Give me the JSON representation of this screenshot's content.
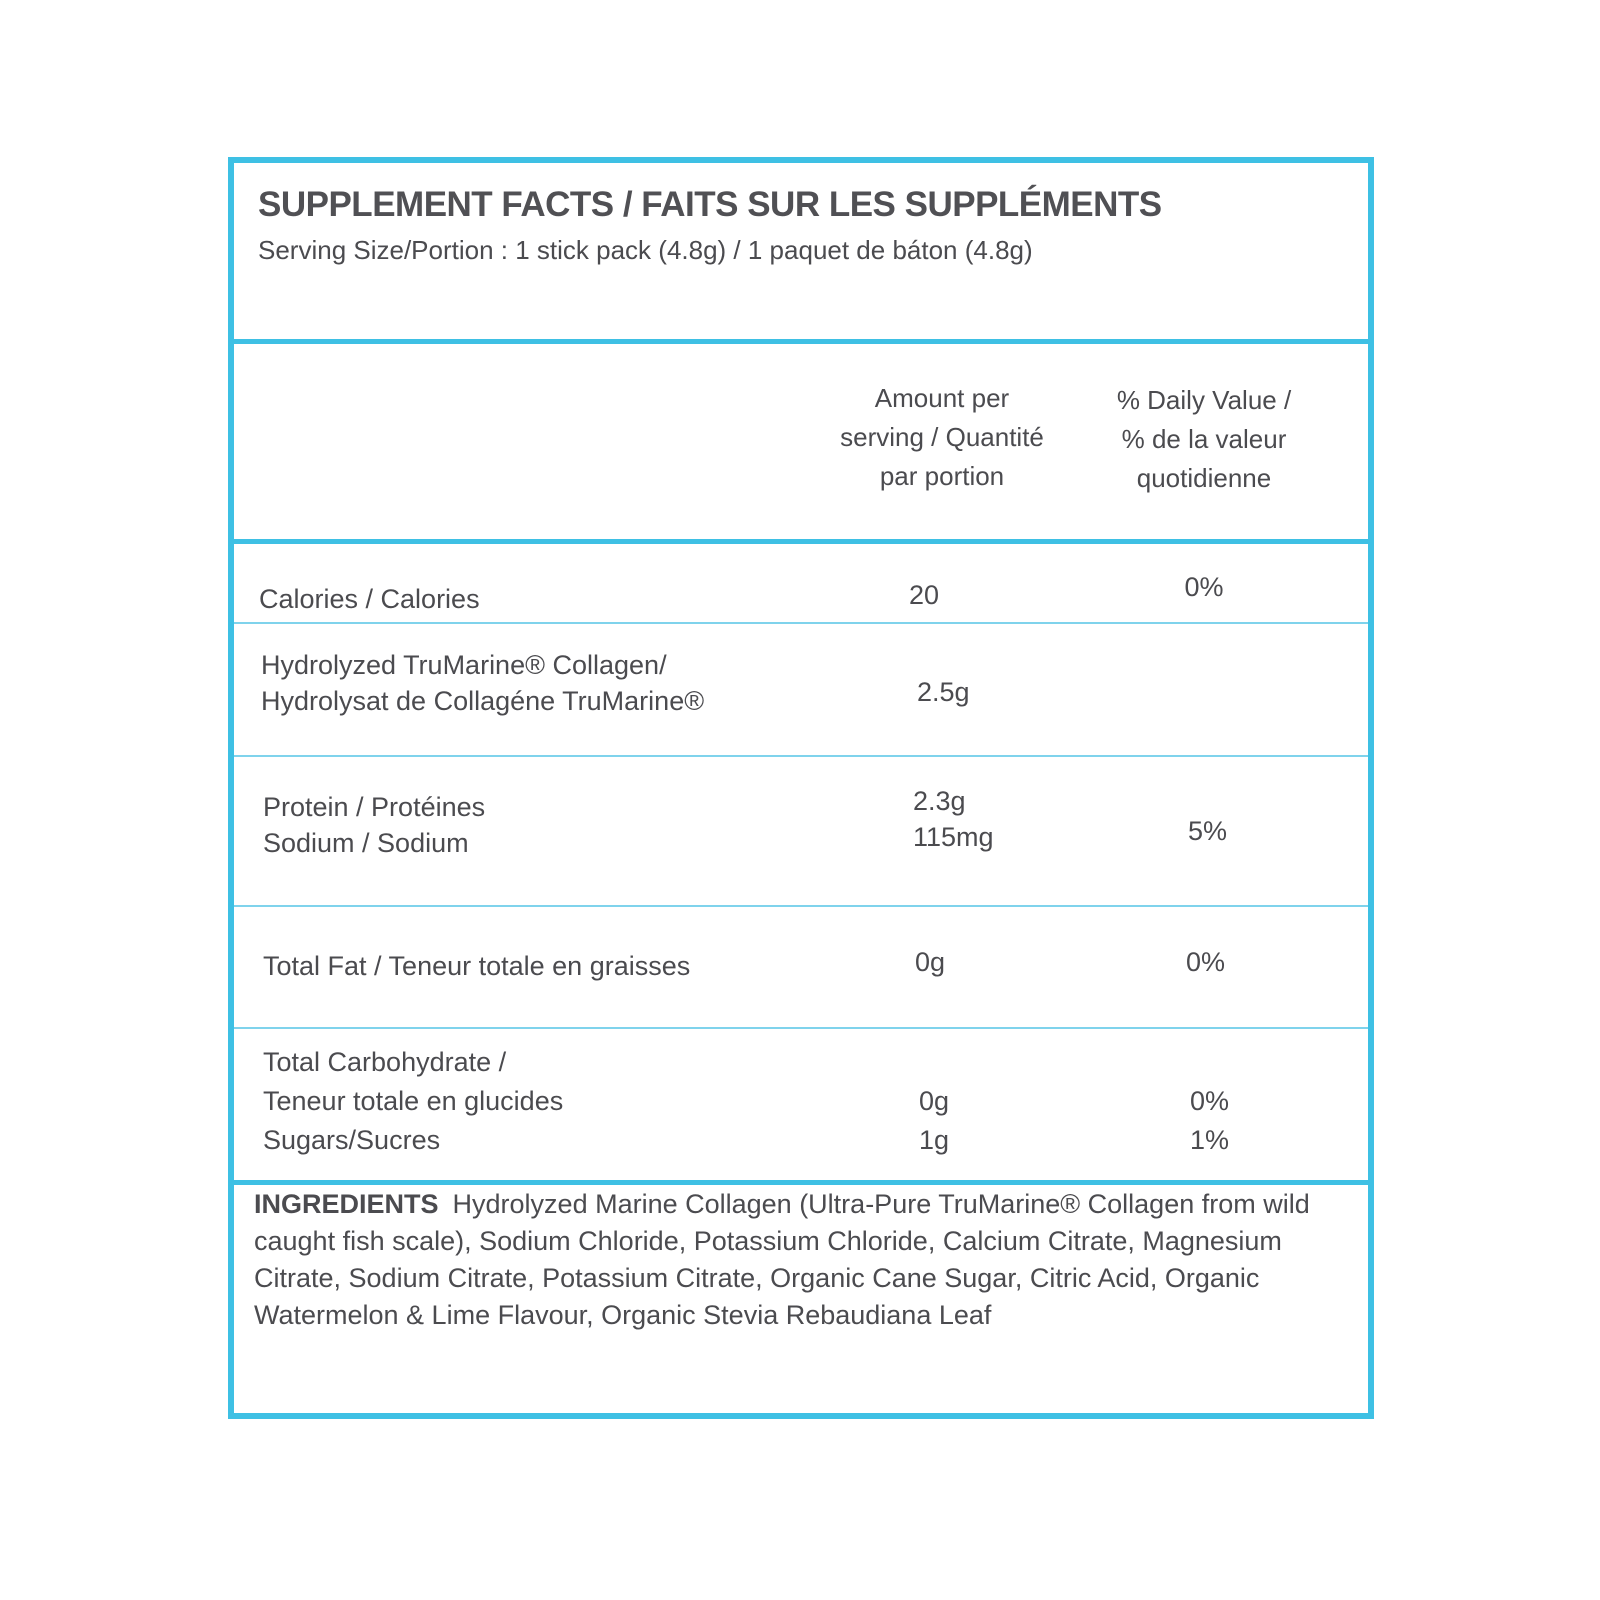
{
  "header": {
    "title": "SUPPLEMENT FACTS / FAITS SUR LES SUPPLÉMENTS",
    "serving_size": "Serving Size/Portion : 1 stick pack (4.8g)  / 1 paquet de báton (4.8g)"
  },
  "columns": {
    "amount": [
      "Amount per",
      "serving / Quantité",
      "par portion"
    ],
    "daily_value": [
      "% Daily Value /",
      "% de la valeur",
      "quotidienne"
    ]
  },
  "rows": [
    {
      "label": [
        "Calories / Calories"
      ],
      "amount": [
        "20"
      ],
      "dv": [
        "0%"
      ]
    },
    {
      "label": [
        "Hydrolyzed TruMarine® Collagen/",
        "Hydrolysat de Collagéne TruMarine®"
      ],
      "amount": [
        "2.5g"
      ],
      "dv": []
    },
    {
      "label": [
        "Protein / Protéines",
        "Sodium / Sodium"
      ],
      "amount": [
        "2.3g",
        "115mg"
      ],
      "dv": [
        "5%"
      ]
    },
    {
      "label": [
        "Total Fat / Teneur totale en graisses"
      ],
      "amount": [
        "0g"
      ],
      "dv": [
        "0%"
      ]
    },
    {
      "label": [
        "Total Carbohydrate /",
        "Teneur totale en glucides",
        "Sugars/Sucres"
      ],
      "amount": [
        "0g",
        "1g"
      ],
      "dv": [
        "0%",
        "1%"
      ]
    }
  ],
  "ingredients": {
    "heading": "INGREDIENTS",
    "text": "Hydrolyzed Marine Collagen (Ultra-Pure TruMarine® Collagen from wild caught fish scale), Sodium Chloride, Potassium Chloride, Calcium Citrate, Magnesium Citrate, Sodium Citrate, Potassium Citrate, Organic Cane Sugar, Citric Acid, Organic Watermelon & Lime Flavour, Organic Stevia Rebaudiana Leaf"
  },
  "colors": {
    "border": "#3ec0e4",
    "text": "#4b4b4f"
  }
}
